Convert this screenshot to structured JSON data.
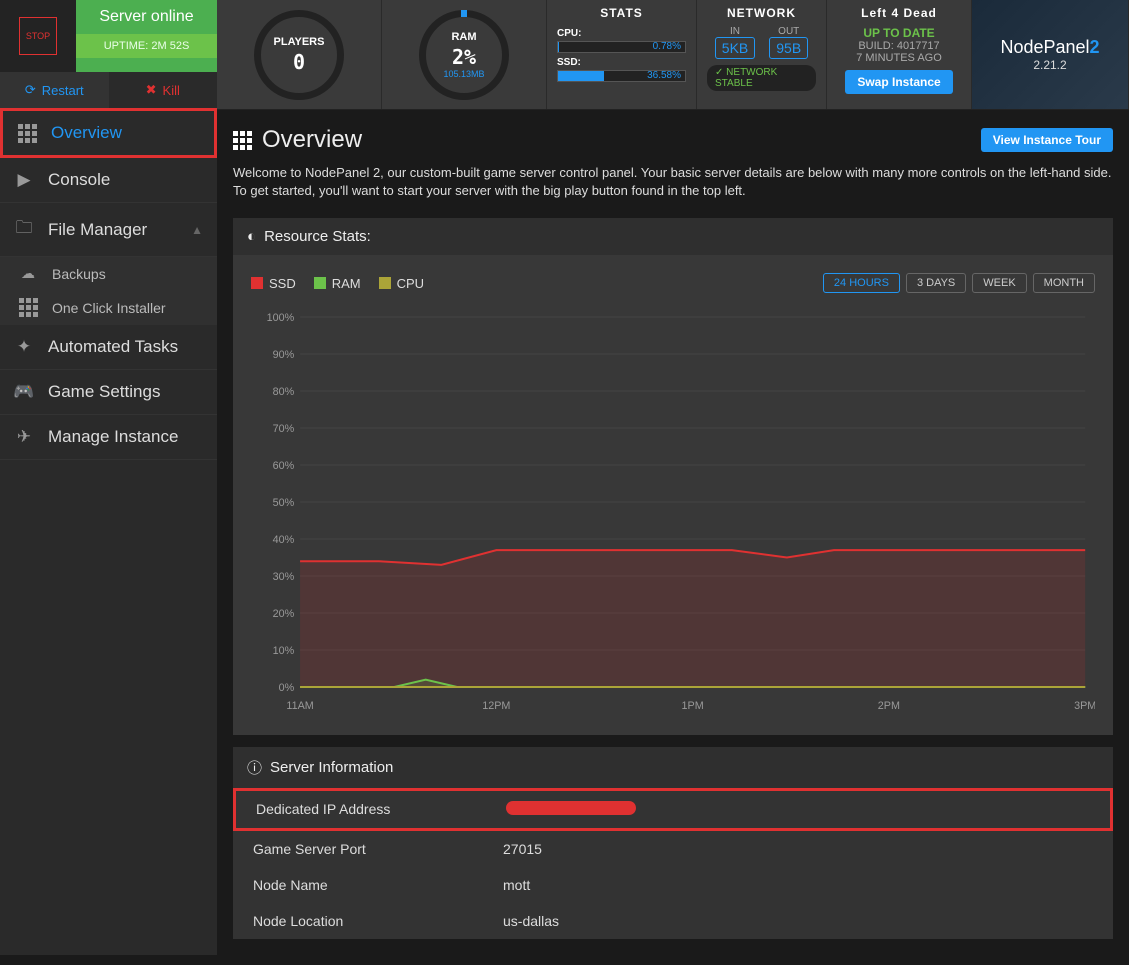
{
  "colors": {
    "accent": "#2196f3",
    "green": "#4caf50",
    "lightgreen": "#6cc24a",
    "red": "#e03131",
    "olive": "#aba438",
    "bg_panel": "#383838",
    "grid": "#444444"
  },
  "topctl": {
    "stop_label": "STOP",
    "status_title": "Server online",
    "uptime_label": "UPTIME: 2M 52S",
    "restart_label": "Restart",
    "kill_label": "Kill"
  },
  "nav": [
    {
      "key": "overview",
      "label": "Overview",
      "icon": "grid",
      "active": true
    },
    {
      "key": "console",
      "label": "Console",
      "icon": "console"
    },
    {
      "key": "filemanager",
      "label": "File Manager",
      "icon": "folder",
      "expandable": true,
      "expanded": true,
      "children": [
        {
          "key": "backups",
          "label": "Backups",
          "icon": "cloud"
        },
        {
          "key": "installer",
          "label": "One Click Installer",
          "icon": "grid"
        }
      ]
    },
    {
      "key": "automated",
      "label": "Automated Tasks",
      "icon": "tasks"
    },
    {
      "key": "gamesettings",
      "label": "Game Settings",
      "icon": "gamepad"
    },
    {
      "key": "manage",
      "label": "Manage Instance",
      "icon": "rocket"
    }
  ],
  "widgets": {
    "players": {
      "title": "PLAYERS",
      "value": "0"
    },
    "ram": {
      "title": "RAM",
      "value": "2%",
      "sub": "105.13MB"
    },
    "stats": {
      "title": "STATS",
      "cpu": {
        "label": "CPU:",
        "pct": 0.78,
        "pct_str": "0.78%"
      },
      "ssd": {
        "label": "SSD:",
        "pct": 36.58,
        "pct_str": "36.58%"
      }
    },
    "network": {
      "title": "NETWORK",
      "in_label": "IN",
      "in_value": "5KB",
      "out_label": "OUT",
      "out_value": "95B",
      "status": "NETWORK STABLE"
    },
    "game": {
      "title": "Left 4 Dead",
      "status": "UP TO DATE",
      "build_label": "BUILD:",
      "build_value": "4017717",
      "age": "7 MINUTES AGO",
      "swap_label": "Swap Instance"
    },
    "brand": {
      "name1": "NodePanel",
      "name2": "2",
      "version": "2.21.2"
    }
  },
  "page": {
    "title": "Overview",
    "tour_btn": "View Instance Tour",
    "welcome": "Welcome to NodePanel 2, our custom-built game server control panel. Your basic server details are below with many more controls on the left-hand side. To get started, you'll want to start your server with the big play button found in the top left."
  },
  "resource_stats": {
    "title": "Resource Stats:",
    "legend": [
      {
        "label": "SSD",
        "color": "#e03131"
      },
      {
        "label": "RAM",
        "color": "#6cc24a"
      },
      {
        "label": "CPU",
        "color": "#aba438"
      }
    ],
    "ranges": [
      {
        "label": "24 HOURS",
        "active": true
      },
      {
        "label": "3 DAYS",
        "active": false
      },
      {
        "label": "WEEK",
        "active": false
      },
      {
        "label": "MONTH",
        "active": false
      }
    ],
    "chart": {
      "ylim": [
        0,
        100
      ],
      "ytick_step": 10,
      "yticks": [
        0,
        10,
        20,
        30,
        40,
        50,
        60,
        70,
        80,
        90,
        100
      ],
      "xticks": [
        "11AM",
        "12PM",
        "1PM",
        "2PM",
        "3PM"
      ],
      "series": {
        "ssd": {
          "color": "#e03131",
          "fill": "rgba(224,49,49,0.15)",
          "points": [
            [
              0,
              34
            ],
            [
              10,
              34
            ],
            [
              18,
              33
            ],
            [
              25,
              37
            ],
            [
              40,
              37
            ],
            [
              55,
              37
            ],
            [
              62,
              35
            ],
            [
              68,
              37
            ],
            [
              100,
              37
            ]
          ]
        },
        "ram": {
          "color": "#6cc24a",
          "fill": "rgba(108,194,74,0.15)",
          "points": [
            [
              0,
              0
            ],
            [
              12,
              0
            ],
            [
              16,
              2
            ],
            [
              20,
              0
            ],
            [
              100,
              0
            ]
          ]
        },
        "cpu": {
          "color": "#aba438",
          "fill": "none",
          "points": [
            [
              0,
              0
            ],
            [
              100,
              0
            ]
          ]
        }
      }
    }
  },
  "server_info": {
    "title": "Server Information",
    "rows": [
      {
        "key": "Dedicated IP Address",
        "value": "",
        "redacted": true,
        "highlight": true
      },
      {
        "key": "Game Server Port",
        "value": "27015"
      },
      {
        "key": "Node Name",
        "value": "mott"
      },
      {
        "key": "Node Location",
        "value": "us-dallas"
      }
    ]
  }
}
